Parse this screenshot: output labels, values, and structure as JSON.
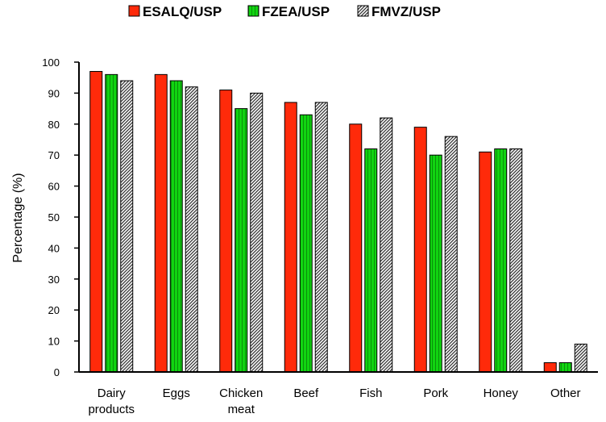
{
  "chart_data": {
    "type": "bar",
    "categories": [
      [
        "Dairy",
        "products"
      ],
      [
        "Eggs"
      ],
      [
        "Chicken",
        "meat"
      ],
      [
        "Beef"
      ],
      [
        "Fish"
      ],
      [
        "Pork"
      ],
      [
        "Honey"
      ],
      [
        "Other"
      ]
    ],
    "series": [
      {
        "name": "ESALQ/USP",
        "color": "#ff2a0a",
        "pattern": "solid",
        "values": [
          97,
          96,
          91,
          87,
          80,
          79,
          71,
          3
        ]
      },
      {
        "name": "FZEA/USP",
        "color": "#11d411",
        "pattern": "vertical-stripes",
        "values": [
          96,
          94,
          85,
          83,
          72,
          70,
          72,
          3
        ]
      },
      {
        "name": "FMVZ/USP",
        "color": "#555555",
        "pattern": "diagonal-hatch",
        "values": [
          94,
          92,
          90,
          87,
          82,
          76,
          72,
          9
        ]
      }
    ],
    "ylabel": "Percentage (%)",
    "xlabel": "",
    "ylim": [
      0,
      100
    ],
    "yticks": [
      0,
      10,
      20,
      30,
      40,
      50,
      60,
      70,
      80,
      90,
      100
    ],
    "grid": false,
    "legend": "top"
  }
}
